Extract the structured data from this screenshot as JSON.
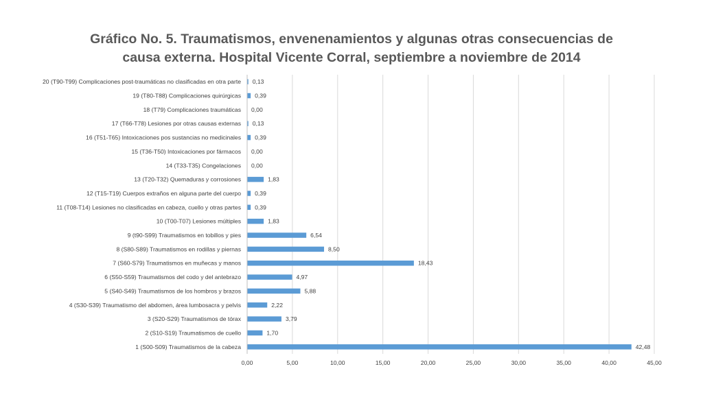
{
  "chart_data": {
    "type": "bar",
    "orientation": "horizontal",
    "title_lines": [
      "Gráfico No. 5. Traumatismos, envenenamientos y algunas otras consecuencias de",
      "causa externa. Hospital Vicente Corral, septiembre a noviembre de 2014"
    ],
    "categories": [
      "1 (S00-S09) Traumatismos de la cabeza",
      "2 (S10-S19) Traumatismos de cuello",
      "3 (S20-S29) Traumatismos de tórax",
      "4 (S30-S39) Traumatismo del abdomen, área lumbosacra y pelvis",
      "5 (S40-S49) Traumatismos de los hombros y brazos",
      "6 (S50-S59) Traumatismos del codo y del antebrazo",
      "7 (S60-S79) Traumatismos en muñecas y manos",
      "8 (S80-S89) Traumatismos en rodillas y piernas",
      "9 (t90-S99) Traumatismos en tobillos y pies",
      "10 (T00-T07) Lesiones múltiples",
      "11 (T08-T14) Lesiones no clasificadas en cabeza, cuello y otras partes",
      "12 (T15-T19) Cuerpos extraños en alguna parte del cuerpo",
      "13 (T20-T32) Quemaduras y corrosiones",
      "14 (T33-T35) Congelaciones",
      "15 (T36-T50) Intoxicaciones por fármacos",
      "16 (T51-T65) Intoxicaciones pos sustancias no medicinales",
      "17 (T66-T78) Lesiones por otras causas externas",
      "18 (T79) Complicaciones traumáticas",
      "19 (T80-T88) Complicaciones quirúrgicas",
      "20 (T90-T99) Complicaciones post-traumáticas no clasificadas en otra parte"
    ],
    "values": [
      42.48,
      1.7,
      3.79,
      2.22,
      5.88,
      4.97,
      18.43,
      8.5,
      6.54,
      1.83,
      0.39,
      0.39,
      1.83,
      0.0,
      0.0,
      0.39,
      0.13,
      0.0,
      0.39,
      0.13
    ],
    "value_labels": [
      "42,48",
      "1,70",
      "3,79",
      "2,22",
      "5,88",
      "4,97",
      "18,43",
      "8,50",
      "6,54",
      "1,83",
      "0,39",
      "0,39",
      "1,83",
      "0,00",
      "0,00",
      "0,39",
      "0,13",
      "0,00",
      "0,39",
      "0,13"
    ],
    "xlim": [
      0,
      45
    ],
    "xticks": [
      0,
      5,
      10,
      15,
      20,
      25,
      30,
      35,
      40,
      45
    ],
    "xtick_labels": [
      "0,00",
      "5,00",
      "10,00",
      "15,00",
      "20,00",
      "25,00",
      "30,00",
      "35,00",
      "40,00",
      "45,00"
    ],
    "grid": "vertical",
    "legend": "none",
    "bar_color": "#5b9bd5",
    "grid_color": "#d9d9d9",
    "text_color": "#404040"
  }
}
